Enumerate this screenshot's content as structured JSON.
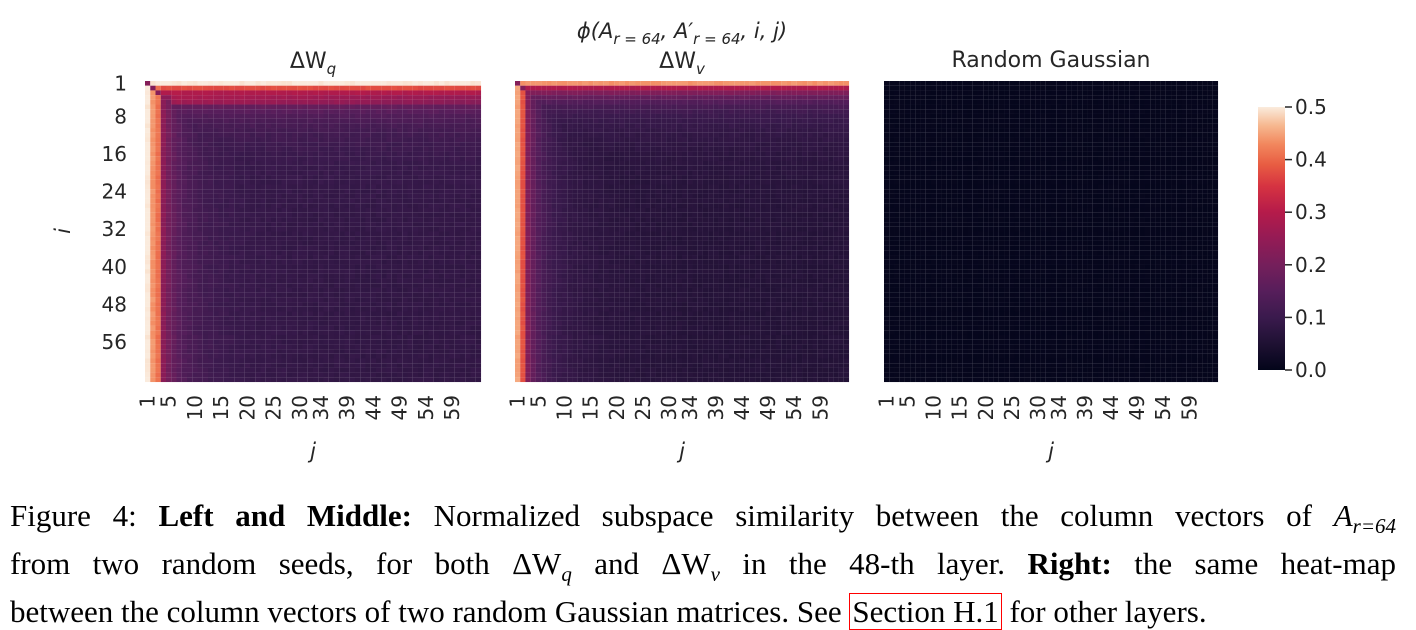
{
  "chart_data": {
    "type": "heatmap",
    "suptitle_parts": {
      "phi": "ϕ(",
      "A": "A",
      "sub_r64": "r = 64",
      "comma1": ", ",
      "Aprime": "A′",
      "sub_r64b": "r = 64",
      "rest": ", i, j)"
    },
    "rows": 64,
    "cols": 64,
    "panels": [
      {
        "id": "dwq",
        "title_delta": "ΔW",
        "title_sub": "q",
        "ylabel": "i",
        "xlabel": "j",
        "pattern": "dwq",
        "value_range": [
          0.0,
          0.5
        ]
      },
      {
        "id": "dwv",
        "title_delta": "ΔW",
        "title_sub": "v",
        "ylabel": "",
        "xlabel": "j",
        "pattern": "dwv",
        "value_range": [
          0.0,
          0.5
        ]
      },
      {
        "id": "gauss",
        "title": "Random Gaussian",
        "ylabel": "",
        "xlabel": "j",
        "pattern": "gauss",
        "value_range": [
          0.0,
          0.02
        ]
      }
    ],
    "y_tick_labels": [
      "1",
      "8",
      "16",
      "24",
      "32",
      "40",
      "48",
      "56"
    ],
    "y_tick_rows": [
      1,
      8,
      16,
      24,
      32,
      40,
      48,
      56
    ],
    "x_tick_labels": [
      "1",
      "5",
      "10",
      "15",
      "20",
      "25",
      "30",
      "34",
      "39",
      "44",
      "49",
      "54",
      "59"
    ],
    "x_tick_cols": [
      1,
      5,
      10,
      15,
      20,
      25,
      30,
      34,
      39,
      44,
      49,
      54,
      59
    ],
    "colorbar": {
      "min": 0.0,
      "max": 0.5,
      "ticks": [
        0.0,
        0.1,
        0.2,
        0.3,
        0.4,
        0.5
      ],
      "tick_labels": [
        "0.0",
        "0.1",
        "0.2",
        "0.3",
        "0.4",
        "0.5"
      ],
      "colormap": "rocket"
    }
  },
  "caption": {
    "figure_label": "Figure 4: ",
    "left_middle": "Left and Middle:",
    "text1": " Normalized subspace similarity between the column vectors of ",
    "A": "A",
    "A_sub": "r=64",
    "line2_a": "from two random seeds, for both ",
    "dwq": "ΔW",
    "dwq_sub": "q",
    "and": " and ",
    "dwv": "ΔW",
    "dwv_sub": "v",
    "line2_b": " in the 48-th layer. ",
    "right": "Right:",
    "line2_c": " the same heat-map",
    "line3_a": "between the column vectors of two random Gaussian matrices. See ",
    "section_link": "Section H.1",
    "line3_b": " for other layers."
  }
}
